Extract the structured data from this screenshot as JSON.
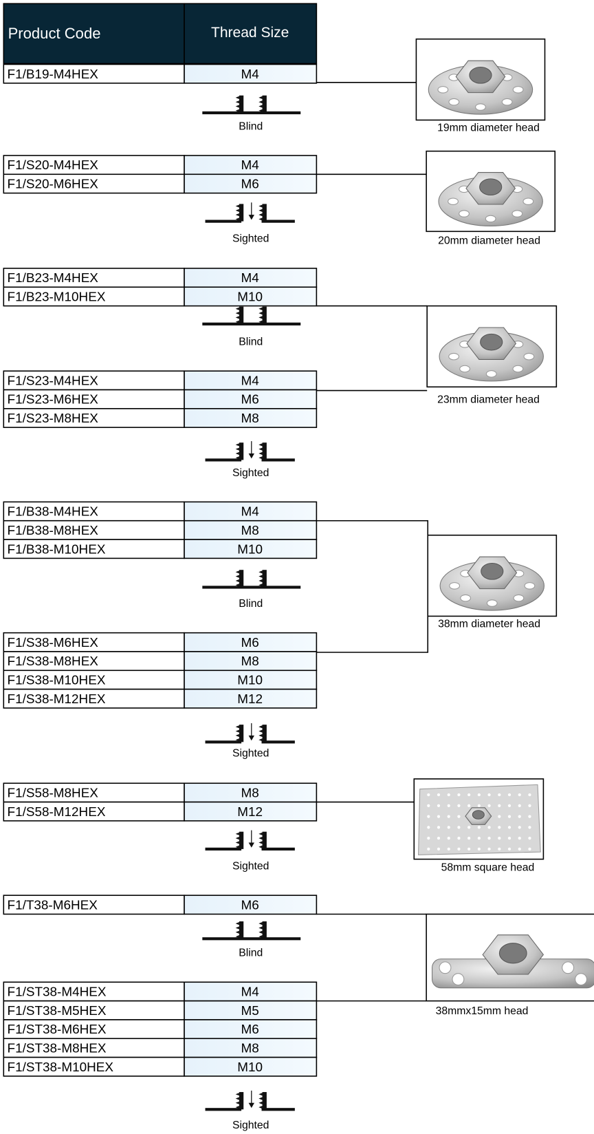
{
  "header": {
    "product_code": "Product Code",
    "thread_size": "Thread Size"
  },
  "blocks": [
    {
      "rows": [
        [
          "F1/B19-M4HEX",
          "M4"
        ]
      ],
      "mount": "Blind"
    },
    {
      "rows": [
        [
          "F1/S20-M4HEX",
          "M4"
        ],
        [
          "F1/S20-M6HEX",
          "M6"
        ]
      ],
      "mount": "Sighted"
    },
    {
      "rows": [
        [
          "F1/B23-M4HEX",
          "M4"
        ],
        [
          "F1/B23-M10HEX",
          "M10"
        ]
      ],
      "mount": "Blind"
    },
    {
      "rows": [
        [
          "F1/S23-M4HEX",
          "M4"
        ],
        [
          "F1/S23-M6HEX",
          "M6"
        ],
        [
          "F1/S23-M8HEX",
          "M8"
        ]
      ],
      "mount": "Sighted"
    },
    {
      "rows": [
        [
          "F1/B38-M4HEX",
          "M4"
        ],
        [
          "F1/B38-M8HEX",
          "M8"
        ],
        [
          "F1/B38-M10HEX",
          "M10"
        ]
      ],
      "mount": "Blind"
    },
    {
      "rows": [
        [
          "F1/S38-M6HEX",
          "M6"
        ],
        [
          "F1/S38-M8HEX",
          "M8"
        ],
        [
          "F1/S38-M10HEX",
          "M10"
        ],
        [
          "F1/S38-M12HEX",
          "M12"
        ]
      ],
      "mount": "Sighted"
    },
    {
      "rows": [
        [
          "F1/S58-M8HEX",
          "M8"
        ],
        [
          "F1/S58-M12HEX",
          "M12"
        ]
      ],
      "mount": "Sighted"
    },
    {
      "rows": [
        [
          "F1/T38-M6HEX",
          "M6"
        ]
      ],
      "mount": "Blind"
    },
    {
      "rows": [
        [
          "F1/ST38-M4HEX",
          "M4"
        ],
        [
          "F1/ST38-M5HEX",
          "M5"
        ],
        [
          "F1/ST38-M6HEX",
          "M6"
        ],
        [
          "F1/ST38-M8HEX",
          "M8"
        ],
        [
          "F1/ST38-M10HEX",
          "M10"
        ]
      ],
      "mount": "Sighted"
    }
  ],
  "heads": [
    "19mm diameter head",
    "20mm diameter head",
    "23mm diameter head",
    "38mm diameter head",
    "58mm square head",
    "38mmx15mm head"
  ]
}
